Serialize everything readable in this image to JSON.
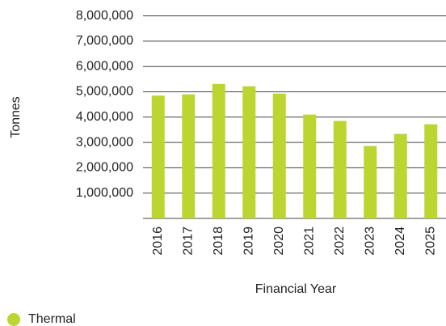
{
  "chart_data": {
    "type": "bar",
    "categories": [
      "2016",
      "2017",
      "2018",
      "2019",
      "2020",
      "2021",
      "2022",
      "2023",
      "2024",
      "2025"
    ],
    "series": [
      {
        "name": "Thermal",
        "color": "#bcd531",
        "values": [
          4850000,
          4900000,
          5310000,
          5220000,
          4930000,
          4100000,
          3850000,
          2860000,
          3340000,
          3720000
        ]
      }
    ],
    "ylim": [
      0,
      8000000
    ],
    "yticks": [
      {
        "value": 1000000,
        "label": "1,000,000"
      },
      {
        "value": 2000000,
        "label": "2,000,000"
      },
      {
        "value": 3000000,
        "label": "3,000,000"
      },
      {
        "value": 4000000,
        "label": "4,000,000"
      },
      {
        "value": 5000000,
        "label": "5,000,000"
      },
      {
        "value": 6000000,
        "label": "6,000,000"
      },
      {
        "value": 7000000,
        "label": "7,000,000"
      },
      {
        "value": 8000000,
        "label": "8,000,000"
      }
    ],
    "y_label": "Tonnes",
    "x_label": "Financial Year",
    "grid": true,
    "legend": "bottom-left"
  }
}
